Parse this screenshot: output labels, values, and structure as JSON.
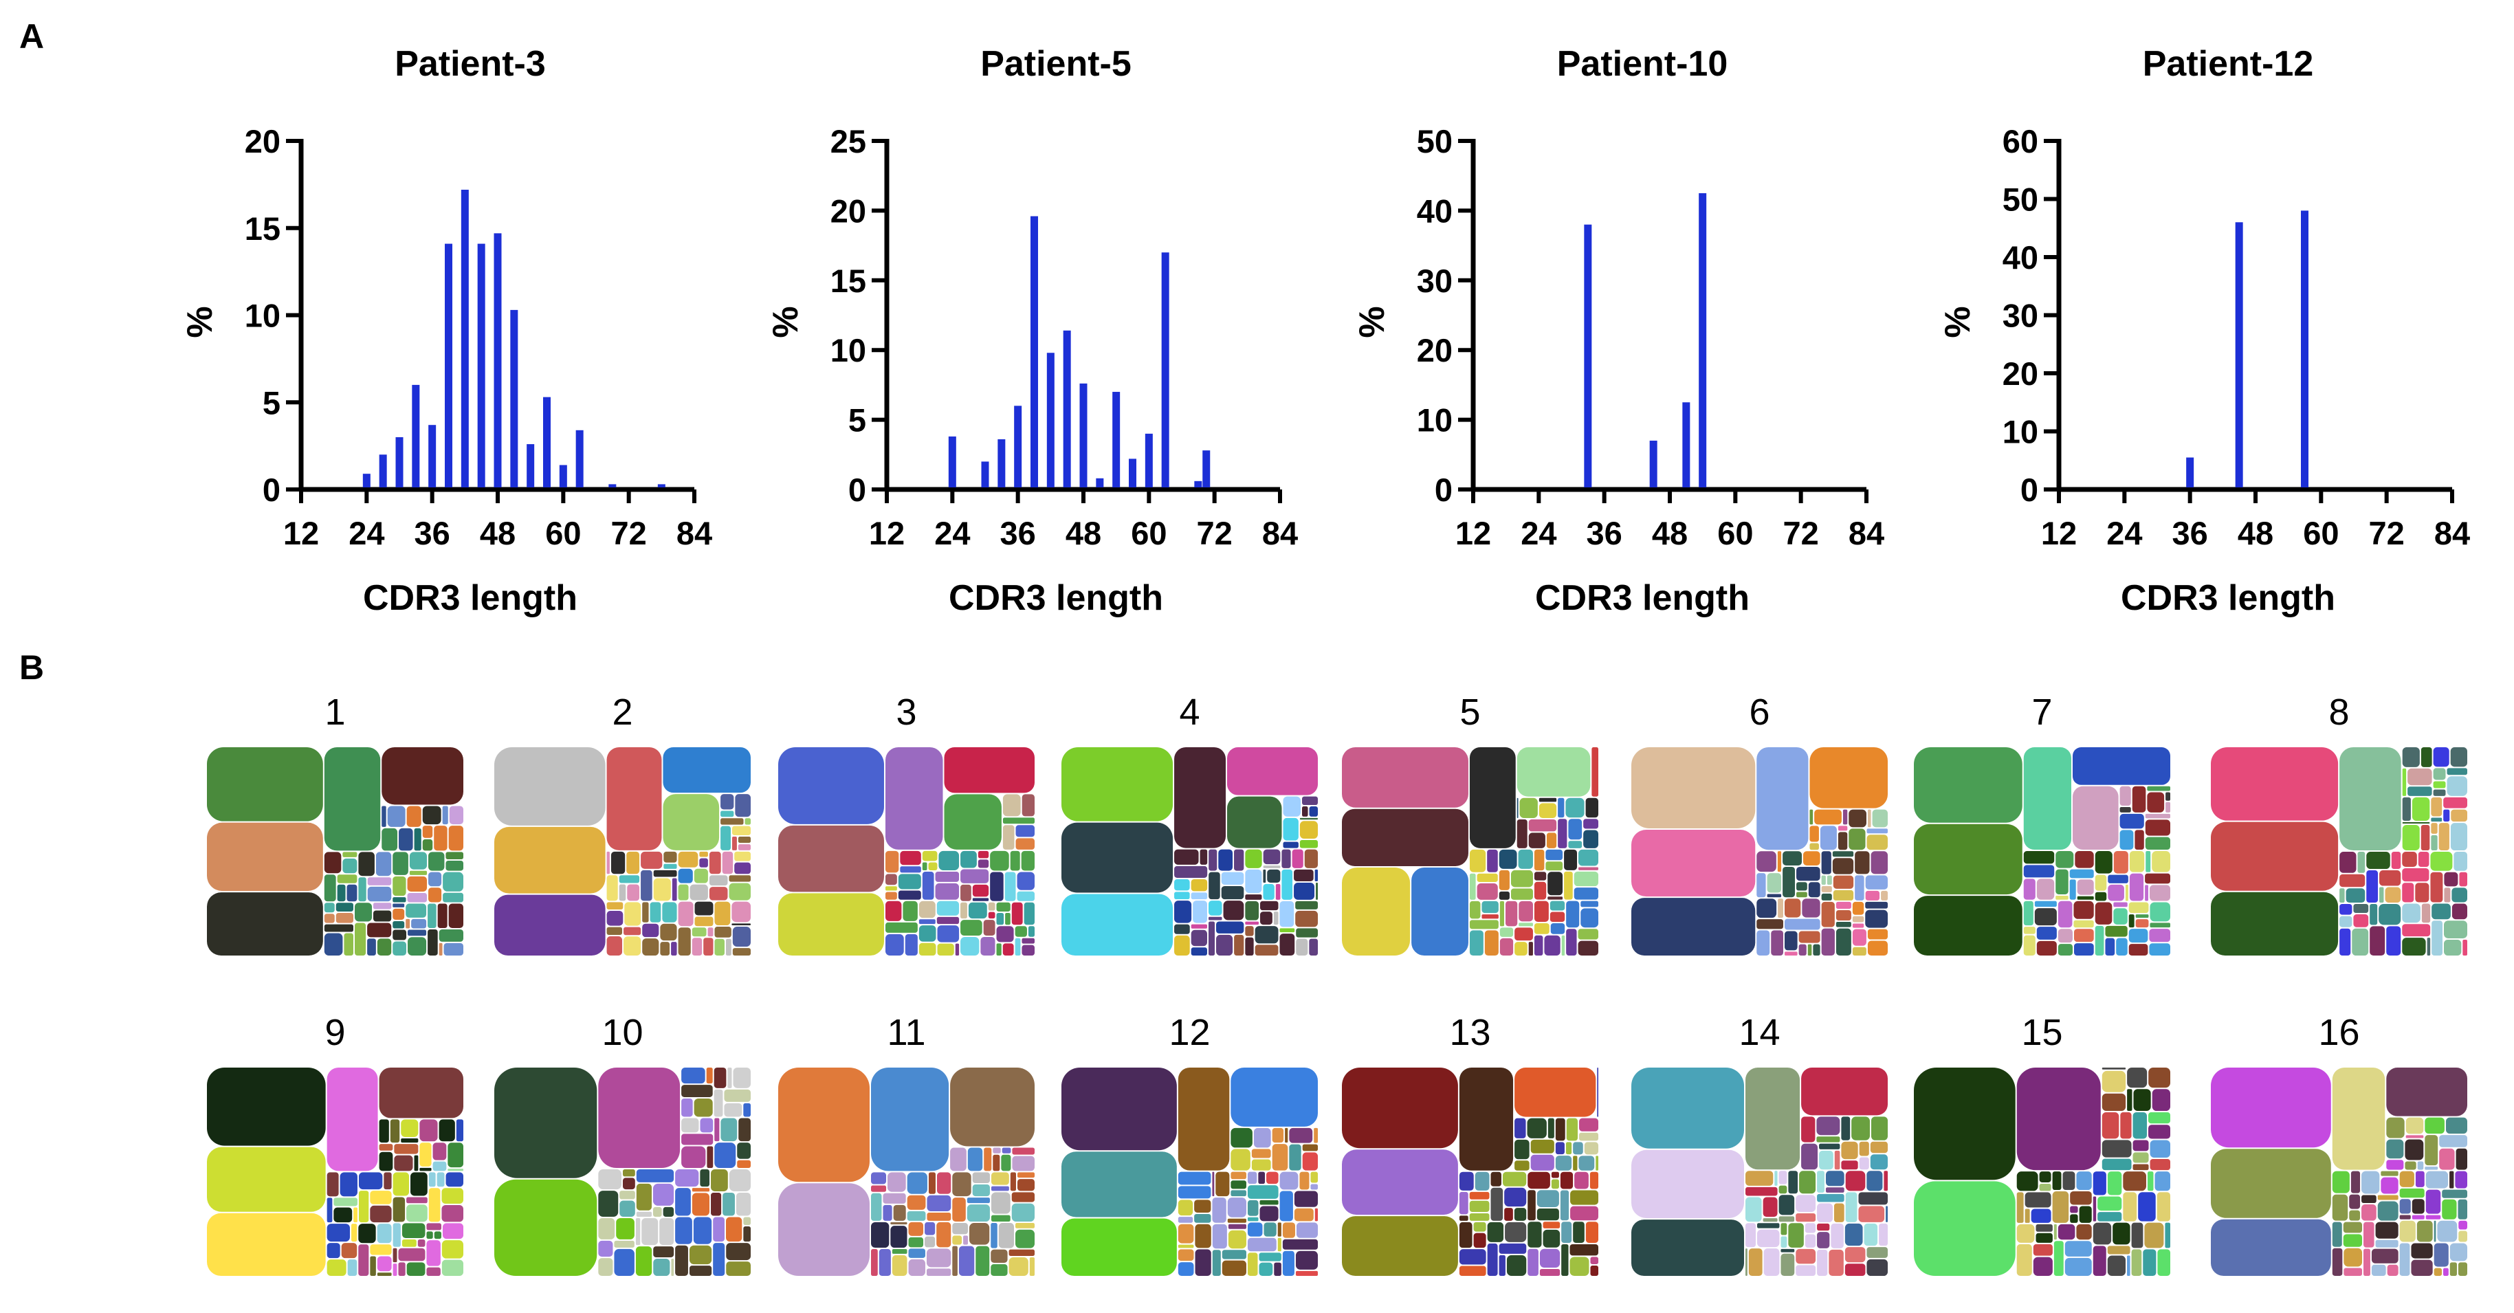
{
  "panel_labels": {
    "a": "A",
    "b": "B"
  },
  "colors": {
    "bar": "#1c2fd6",
    "axis": "#000000"
  },
  "chart_data": [
    {
      "type": "bar",
      "title": "Patient-3",
      "xlabel": "CDR3 length",
      "ylabel": "%",
      "xlim": [
        12,
        84
      ],
      "ylim": [
        0,
        20
      ],
      "xticks": [
        12,
        24,
        36,
        48,
        60,
        72,
        84
      ],
      "yticks": [
        0,
        5,
        10,
        15,
        20
      ],
      "x": [
        24,
        27,
        30,
        33,
        36,
        39,
        42,
        45,
        48,
        51,
        54,
        57,
        60,
        63,
        69,
        78
      ],
      "values": [
        0.9,
        2.0,
        3.0,
        6.0,
        3.7,
        14.1,
        17.2,
        14.1,
        14.7,
        10.3,
        2.6,
        5.3,
        1.4,
        3.4,
        0.3,
        0.3
      ]
    },
    {
      "type": "bar",
      "title": "Patient-5",
      "xlabel": "CDR3 length",
      "ylabel": "%",
      "xlim": [
        12,
        84
      ],
      "ylim": [
        0,
        25
      ],
      "xticks": [
        12,
        24,
        36,
        48,
        60,
        72,
        84
      ],
      "yticks": [
        0,
        5,
        10,
        15,
        20,
        25
      ],
      "x": [
        24,
        30,
        33,
        36,
        39,
        42,
        45,
        48,
        51,
        54,
        57,
        60,
        63,
        69,
        70.5
      ],
      "values": [
        3.8,
        2.0,
        3.6,
        6.0,
        19.6,
        9.8,
        11.4,
        7.6,
        0.8,
        7.0,
        2.2,
        4.0,
        17.0,
        0.6,
        2.8
      ]
    },
    {
      "type": "bar",
      "title": "Patient-10",
      "xlabel": "CDR3 length",
      "ylabel": "%",
      "xlim": [
        12,
        84
      ],
      "ylim": [
        0,
        50
      ],
      "xticks": [
        12,
        24,
        36,
        48,
        60,
        72,
        84
      ],
      "yticks": [
        0,
        10,
        20,
        30,
        40,
        50
      ],
      "x": [
        33,
        45,
        51,
        54
      ],
      "values": [
        38,
        7,
        12.5,
        42.5
      ]
    },
    {
      "type": "bar",
      "title": "Patient-12",
      "xlabel": "CDR3 length",
      "ylabel": "%",
      "xlim": [
        12,
        84
      ],
      "ylim": [
        0,
        60
      ],
      "xticks": [
        12,
        24,
        36,
        48,
        60,
        72,
        84
      ],
      "yticks": [
        0,
        10,
        20,
        30,
        40,
        50,
        60
      ],
      "x": [
        36,
        45,
        57
      ],
      "values": [
        5.5,
        46,
        48
      ]
    }
  ],
  "treemaps": [
    {
      "label": "1",
      "palette": [
        "#4a8a3c",
        "#d38b5d",
        "#2e2f26",
        "#3f8f52",
        "#5b2320",
        "#2f4f8f",
        "#6a8fd0",
        "#e07a32",
        "#4fb3a6",
        "#8fbf4a",
        "#c9a0dc",
        "#1f6f6a"
      ]
    },
    {
      "label": "2",
      "palette": [
        "#c0c0c0",
        "#e0b040",
        "#6a3b9a",
        "#d0585a",
        "#2f7fd0",
        "#9bcf68",
        "#2d2d2d",
        "#de8fb8",
        "#4fbfbf",
        "#8a6a3a",
        "#f0e070",
        "#5060a0"
      ]
    },
    {
      "label": "3",
      "palette": [
        "#4a62d0",
        "#a15a5f",
        "#cfd63a",
        "#9a6ac0",
        "#c8234a",
        "#4fa24a",
        "#6fd6e8",
        "#2f2f6f",
        "#e08040",
        "#3aa0a0",
        "#d0c0a0",
        "#7a3a8a"
      ]
    },
    {
      "label": "4",
      "palette": [
        "#7ccd2a",
        "#2b4149",
        "#4bd3ea",
        "#4a2432",
        "#d04aa0",
        "#3a6a3a",
        "#e0c030",
        "#1f3f9f",
        "#9a5a3a",
        "#a0d0ff",
        "#604080",
        "#c0c0c0"
      ]
    },
    {
      "label": "5",
      "palette": [
        "#c95c8a",
        "#55292f",
        "#e0d040",
        "#3a7ad0",
        "#2a2a2a",
        "#a0e0a0",
        "#d04040",
        "#6a3a9a",
        "#4ab0b0",
        "#e08a30",
        "#8fbf4a",
        "#1f4f6f"
      ]
    },
    {
      "label": "6",
      "palette": [
        "#ddbd9b",
        "#e86aa7",
        "#2b3d6d",
        "#87a6e6",
        "#e8882a",
        "#5a3a2a",
        "#d6c050",
        "#2f5a4a",
        "#a5d3b0",
        "#c06040",
        "#6a9a40",
        "#8a4a8a"
      ]
    },
    {
      "label": "7",
      "palette": [
        "#4a9e54",
        "#4f8a28",
        "#1f4a10",
        "#5ad0a0",
        "#2a50c0",
        "#d0a0c0",
        "#e0e070",
        "#8a2a2a",
        "#3a3a3a",
        "#c06ad0",
        "#40a0e0",
        "#e06a50"
      ]
    },
    {
      "label": "8",
      "palette": [
        "#e64a7a",
        "#c94a4a",
        "#2a5a1e",
        "#86c09b",
        "#4a6a6a",
        "#86e040",
        "#3a3ae0",
        "#d0a0a0",
        "#7a2a5a",
        "#a0d0e0",
        "#e0b060",
        "#3a8a8a"
      ]
    },
    {
      "label": "9",
      "palette": [
        "#142a12",
        "#cdde32",
        "#ffe14a",
        "#e06ae0",
        "#7a3a3a",
        "#2a4ac0",
        "#a0e0a0",
        "#c0603a",
        "#3a8a3a",
        "#6a6a2a",
        "#8fd0e0",
        "#b04a8a"
      ]
    },
    {
      "label": "10",
      "palette": [
        "#2d4a33",
        "#71c619",
        "#b04a9a",
        "#c8d0a8",
        "#8a9030",
        "#a080e0",
        "#4a3a2a",
        "#e07030",
        "#3a6ad0",
        "#d0d0d0",
        "#6a2a2a",
        "#60b0b0"
      ]
    },
    {
      "label": "11",
      "palette": [
        "#e07a3a",
        "#c0a0d0",
        "#4a8ad0",
        "#8a6a4a",
        "#d04a6a",
        "#4aa04a",
        "#2a2a4a",
        "#e0d060",
        "#70c0c0",
        "#a04a2a",
        "#6a6ad0",
        "#c0c0c0"
      ]
    },
    {
      "label": "12",
      "palette": [
        "#4a2a5a",
        "#4a9a9c",
        "#60d420",
        "#8a5a1e",
        "#3a80e0",
        "#e04a4a",
        "#d0d040",
        "#2a6a2a",
        "#a0a0e0",
        "#7a3a7a",
        "#40b0b0",
        "#e09040"
      ]
    },
    {
      "label": "13",
      "palette": [
        "#7e1c1c",
        "#9a6ad0",
        "#8a8a1e",
        "#4a2a1a",
        "#e05a2a",
        "#60a0b0",
        "#2a4a2a",
        "#d0d0a0",
        "#c04a8a",
        "#3a3ab0",
        "#a0c040",
        "#505050"
      ]
    },
    {
      "label": "14",
      "palette": [
        "#4aa3b8",
        "#decbef",
        "#2a4a4a",
        "#8aa07a",
        "#c02a4a",
        "#3a6aa0",
        "#6aa040",
        "#d0a04a",
        "#7a4a8a",
        "#a0e0e0",
        "#e07070",
        "#40404a"
      ]
    },
    {
      "label": "15",
      "palette": [
        "#1a3a0e",
        "#5ce06a",
        "#7a2a7a",
        "#a0c070",
        "#2a40d0",
        "#c0a04a",
        "#d04a4a",
        "#3aa0a0",
        "#e0d070",
        "#8a4a2a",
        "#60a0e0",
        "#4a4a4a"
      ]
    },
    {
      "label": "16",
      "palette": [
        "#c54ae0",
        "#8a9a4a",
        "#5a70b0",
        "#ddd787",
        "#6a3a5a",
        "#60d040",
        "#8a3ad0",
        "#3a2a2a",
        "#e06a9a",
        "#4a8a8a",
        "#d0a040",
        "#a0c0e0"
      ]
    }
  ]
}
